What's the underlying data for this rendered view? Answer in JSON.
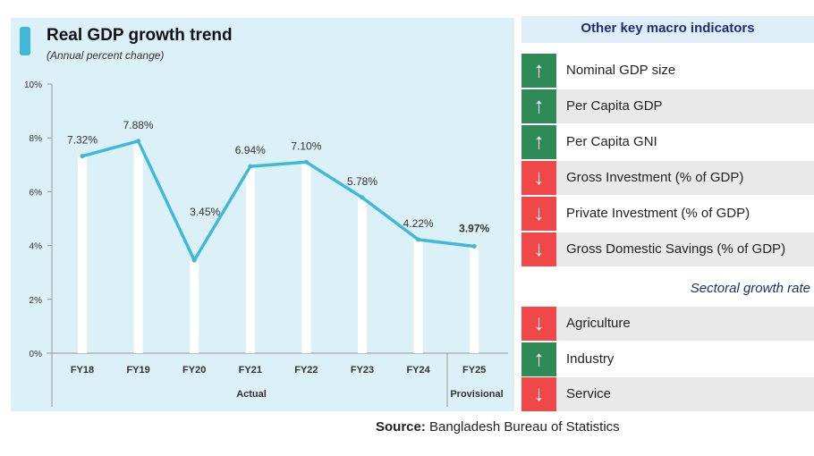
{
  "chart_data": {
    "type": "line",
    "title": "Real GDP growth trend",
    "subtitle": "(Annual percent change)",
    "categories": [
      "FY18",
      "FY19",
      "FY20",
      "FY21",
      "FY22",
      "FY23",
      "FY24",
      "FY25"
    ],
    "values": [
      7.32,
      7.88,
      3.45,
      6.94,
      7.1,
      5.78,
      4.22,
      3.97
    ],
    "data_labels": [
      "7.32%",
      "7.88%",
      "3.45%",
      "6.94%",
      "7.10%",
      "5.78%",
      "4.22%",
      "3.97%"
    ],
    "y_ticks": [
      "0%",
      "2%",
      "4%",
      "6%",
      "8%",
      "10%"
    ],
    "ylim": [
      0,
      10
    ],
    "groups": [
      "Actual",
      "Provisional"
    ],
    "line_color": "#41b8d8",
    "grid": false,
    "drop_lines": true
  },
  "indicators": {
    "title": "Other key macro indicators",
    "items": [
      {
        "label": "Nominal GDP size",
        "trend": "up"
      },
      {
        "label": "Per Capita GDP",
        "trend": "up"
      },
      {
        "label": "Per Capita GNI",
        "trend": "up"
      },
      {
        "label": "Gross Investment (% of GDP)",
        "trend": "down"
      },
      {
        "label": "Private Investment (% of GDP)",
        "trend": "down"
      },
      {
        "label": "Gross Domestic Savings (% of GDP)",
        "trend": "down"
      }
    ],
    "sectoral_title": "Sectoral growth rate",
    "sectoral": [
      {
        "label": "Agriculture",
        "trend": "down"
      },
      {
        "label": "Industry",
        "trend": "up"
      },
      {
        "label": "Service",
        "trend": "down"
      }
    ],
    "up_color": "#2e8b57",
    "down_color": "#f04848"
  },
  "source": {
    "label": "Source:",
    "text": " Bangladesh Bureau of Statistics"
  }
}
